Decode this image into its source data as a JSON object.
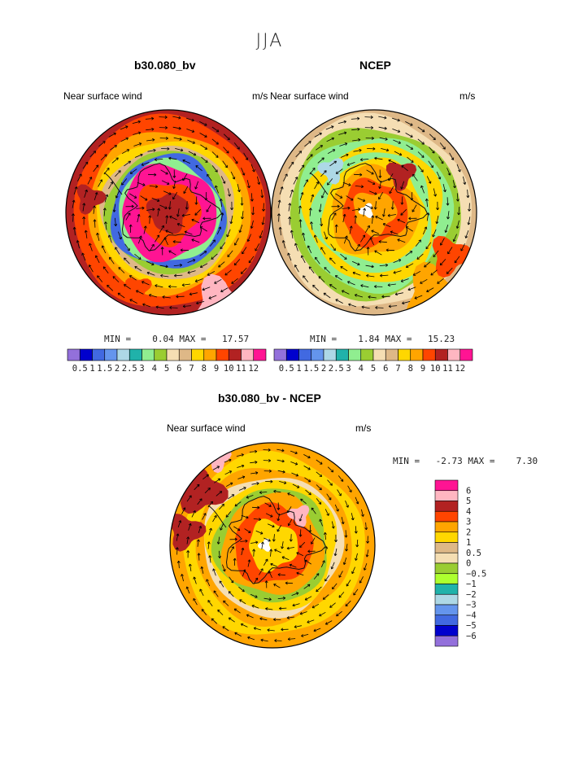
{
  "season": "JJA",
  "panels": [
    {
      "title": "b30.080_bv",
      "left_label": "Near surface wind",
      "right_label": "m/s",
      "min_label": "MIN =",
      "min": "0.04",
      "max_label": "MAX =",
      "max": "17.57",
      "style": "model"
    },
    {
      "title": "NCEP",
      "left_label": "Near surface wind",
      "right_label": "m/s",
      "min_label": "MIN =",
      "min": "1.84",
      "max_label": "MAX =",
      "max": "15.23",
      "style": "obs"
    }
  ],
  "diff_panel": {
    "title": "b30.080_bv - NCEP",
    "left_label": "Near surface wind",
    "right_label": "m/s",
    "min_label": "MIN =",
    "min": "-2.73",
    "max_label": "MAX =",
    "max": "7.30"
  },
  "abs_colorbar": {
    "colors": [
      "#9370db",
      "#0000cd",
      "#4169e1",
      "#6495ed",
      "#add8e6",
      "#20b2aa",
      "#90ee90",
      "#9acd32",
      "#f5deb3",
      "#deb887",
      "#ffd700",
      "#ffa500",
      "#ff4500",
      "#b22222",
      "#ffb6c1",
      "#ff1493"
    ],
    "labels": [
      "0.5",
      "1",
      "1.5",
      "2",
      "2.5",
      "3",
      "4",
      "5",
      "6",
      "7",
      "8",
      "9",
      "10",
      "11",
      "12"
    ]
  },
  "diff_colorbar": {
    "colors": [
      "#ff1493",
      "#ffb6c1",
      "#b22222",
      "#ff4500",
      "#ffa500",
      "#ffd700",
      "#deb887",
      "#f5deb3",
      "#9acd32",
      "#adff2f",
      "#20b2aa",
      "#add8e6",
      "#6495ed",
      "#4169e1",
      "#0000cd",
      "#9370db"
    ],
    "labels": [
      "6",
      "5",
      "4",
      "3",
      "2",
      "1",
      "0.5",
      "0",
      "−0.5",
      "−1",
      "−2",
      "−3",
      "−4",
      "−5",
      "−6"
    ]
  }
}
